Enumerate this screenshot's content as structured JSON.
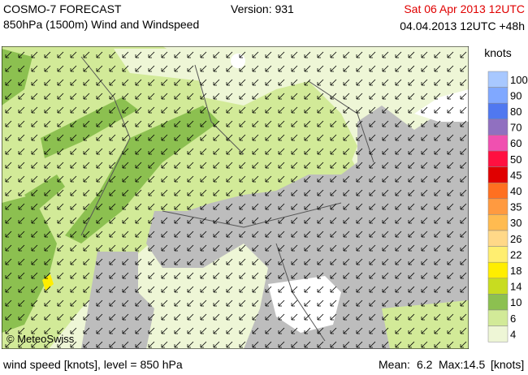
{
  "header": {
    "title": "COSMO-7 FORECAST",
    "subtitle": "850hPa (1500m) Wind and Windspeed",
    "version": "Version: 931",
    "valid_time": "Sat 06 Apr 2013 12UTC",
    "run_time": "04.04.2013 12UTC +48h"
  },
  "legend": {
    "title": "knots",
    "levels": [
      {
        "label": "100",
        "color": "#a8c8ff"
      },
      {
        "label": "90",
        "color": "#80a8ff"
      },
      {
        "label": "80",
        "color": "#5078f0"
      },
      {
        "label": "70",
        "color": "#9070c0"
      },
      {
        "label": "60",
        "color": "#f050b0"
      },
      {
        "label": "50",
        "color": "#ff1040"
      },
      {
        "label": "45",
        "color": "#e00000"
      },
      {
        "label": "40",
        "color": "#ff7020"
      },
      {
        "label": "35",
        "color": "#ff9a40"
      },
      {
        "label": "30",
        "color": "#ffbb50"
      },
      {
        "label": "26",
        "color": "#ffd888"
      },
      {
        "label": "22",
        "color": "#ffee70"
      },
      {
        "label": "18",
        "color": "#ffee00"
      },
      {
        "label": "14",
        "color": "#c8dc20"
      },
      {
        "label": "10",
        "color": "#8cc050"
      },
      {
        "label": "6",
        "color": "#d2ea98"
      },
      {
        "label": "4",
        "color": "#eef6d6"
      }
    ]
  },
  "map": {
    "credit": "© MeteoSwiss"
  },
  "footer": {
    "description": "wind speed [knots], level = 850 hPa",
    "mean_label": "Mean:",
    "mean": "6.2",
    "max_label": "Max:",
    "max": "14.5",
    "unit": "[knots]"
  }
}
